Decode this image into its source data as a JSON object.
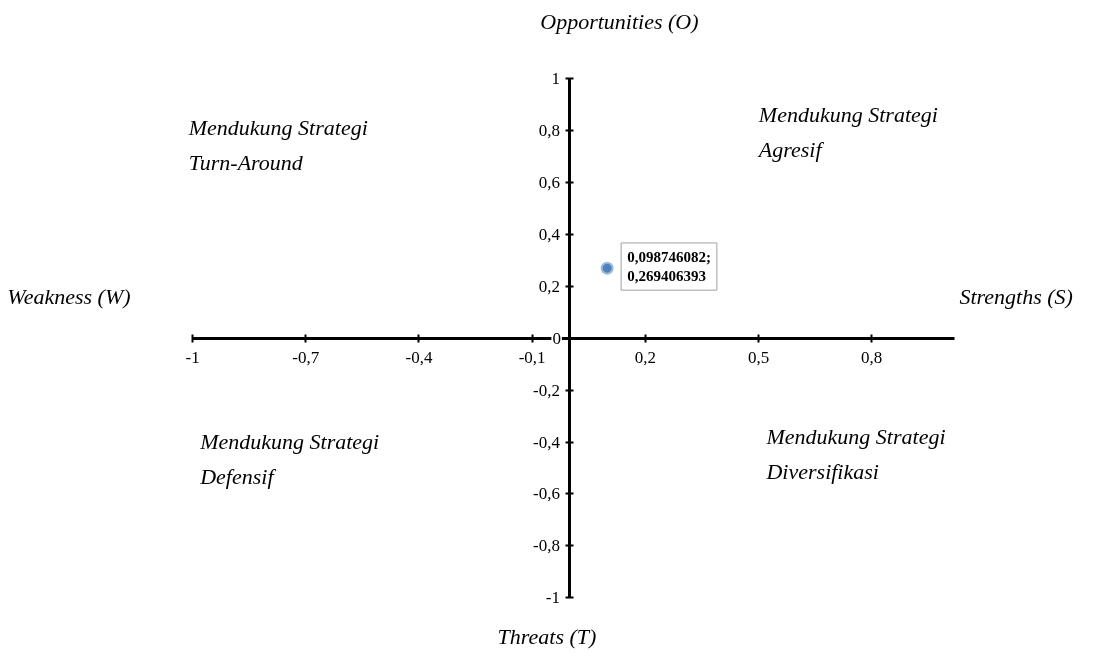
{
  "chart_data": {
    "type": "scatter",
    "x": [
      0.098746082
    ],
    "values": [
      0.269406393
    ],
    "color": "#4f81bd",
    "marker": "circle",
    "value_labels": [
      "0,098746082;\n0,269406393"
    ],
    "xlim": [
      -1,
      1.02
    ],
    "ylim": [
      -1,
      1
    ],
    "xticks": [
      {
        "value": -1,
        "label": "-1"
      },
      {
        "value": -0.7,
        "label": "-0,7"
      },
      {
        "value": -0.4,
        "label": "-0,4"
      },
      {
        "value": -0.1,
        "label": "-0,1"
      },
      {
        "value": 0.2,
        "label": "0,2"
      },
      {
        "value": 0.5,
        "label": "0,5"
      },
      {
        "value": 0.8,
        "label": "0,8"
      }
    ],
    "yticks": [
      1,
      {
        "value": 0.8,
        "label": "0,8"
      },
      {
        "value": 0.6,
        "label": "0,6"
      },
      {
        "value": 0.4,
        "label": "0,4"
      },
      {
        "value": 0.2,
        "label": "0,2"
      },
      0,
      {
        "value": -0.2,
        "label": "-0,2"
      },
      {
        "value": -0.4,
        "label": "-0,4"
      },
      {
        "value": -0.6,
        "label": "-0,6"
      },
      {
        "value": -0.8,
        "label": "-0,8"
      },
      -1
    ],
    "grid": false,
    "annotations": [
      "Opportunities (O)",
      "Threats (T)",
      "Weakness (W)",
      "Strengths (S)",
      "Mendukung Strategi\nTurn-Around",
      "Mendukung Strategi\nAgresif",
      "Mendukung Strategi\nDefensif",
      "Mendukung Strategi\nDiversifikasi"
    ]
  }
}
